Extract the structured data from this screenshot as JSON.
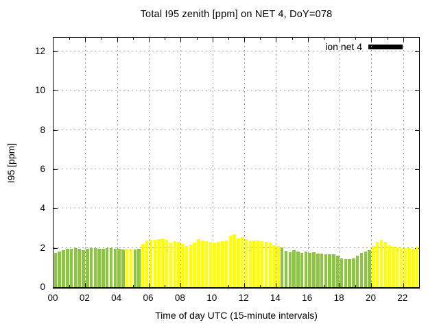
{
  "chart_data": {
    "type": "bar",
    "title": "Total I95 zenith [ppm] on NET 4, DoY=078",
    "xlabel": "Time of day UTC (15-minute intervals)",
    "ylabel": "I95 [ppm]",
    "xlim_hours": [
      0,
      23
    ],
    "ylim": [
      0,
      12.7
    ],
    "grid": true,
    "x_tick_labels": [
      "00",
      "02",
      "04",
      "06",
      "08",
      "10",
      "12",
      "14",
      "16",
      "18",
      "20",
      "22"
    ],
    "x_tick_hours": [
      0,
      2,
      4,
      6,
      8,
      10,
      12,
      14,
      16,
      18,
      20,
      22
    ],
    "y_ticks": [
      0,
      2,
      4,
      6,
      8,
      10,
      12
    ],
    "legend": [
      {
        "name": "ion net 4",
        "swatch_color": "#000000",
        "position": "top-right-inside"
      }
    ],
    "colors": {
      "green": "#8CC63E",
      "yellow": "#FFFF00"
    },
    "interval_minutes": 15,
    "x": [
      "00:00",
      "00:15",
      "00:30",
      "00:45",
      "01:00",
      "01:15",
      "01:30",
      "01:45",
      "02:00",
      "02:15",
      "02:30",
      "02:45",
      "03:00",
      "03:15",
      "03:30",
      "03:45",
      "04:00",
      "04:15",
      "04:30",
      "04:45",
      "05:00",
      "05:15",
      "05:30",
      "05:45",
      "06:00",
      "06:15",
      "06:30",
      "06:45",
      "07:00",
      "07:15",
      "07:30",
      "07:45",
      "08:00",
      "08:15",
      "08:30",
      "08:45",
      "09:00",
      "09:15",
      "09:30",
      "09:45",
      "10:00",
      "10:15",
      "10:30",
      "10:45",
      "11:00",
      "11:15",
      "11:30",
      "11:45",
      "12:00",
      "12:15",
      "12:30",
      "12:45",
      "13:00",
      "13:15",
      "13:30",
      "13:45",
      "14:00",
      "14:15",
      "14:30",
      "14:45",
      "15:00",
      "15:15",
      "15:30",
      "15:45",
      "16:00",
      "16:15",
      "16:30",
      "16:45",
      "17:00",
      "17:15",
      "17:30",
      "17:45",
      "18:00",
      "18:15",
      "18:30",
      "18:45",
      "19:00",
      "19:15",
      "19:30",
      "19:45",
      "20:00",
      "20:15",
      "20:30",
      "20:45",
      "21:00",
      "21:15",
      "21:30",
      "21:45",
      "22:00",
      "22:15",
      "22:30",
      "22:45"
    ],
    "values": [
      1.75,
      1.82,
      1.88,
      1.95,
      1.97,
      1.98,
      1.96,
      1.9,
      1.96,
      2.0,
      1.98,
      1.96,
      1.95,
      1.98,
      2.0,
      1.97,
      1.95,
      1.93,
      1.95,
      1.97,
      1.93,
      1.95,
      2.2,
      2.38,
      2.42,
      2.4,
      2.45,
      2.48,
      2.4,
      2.28,
      2.35,
      2.3,
      2.2,
      2.08,
      2.15,
      2.26,
      2.45,
      2.36,
      2.34,
      2.3,
      2.26,
      2.3,
      2.34,
      2.38,
      2.6,
      2.68,
      2.48,
      2.55,
      2.45,
      2.38,
      2.36,
      2.36,
      2.34,
      2.3,
      2.28,
      2.12,
      2.1,
      2.02,
      1.86,
      1.78,
      1.88,
      1.82,
      1.75,
      1.8,
      1.76,
      1.78,
      1.72,
      1.7,
      1.68,
      1.67,
      1.66,
      1.62,
      1.48,
      1.44,
      1.42,
      1.46,
      1.6,
      1.74,
      1.82,
      1.88,
      2.1,
      2.3,
      2.42,
      2.32,
      2.12,
      2.05,
      2.06,
      2.0,
      1.98,
      2.0,
      1.96,
      2.05
    ],
    "bar_colors": [
      "g",
      "g",
      "g",
      "g",
      "g",
      "g",
      "g",
      "g",
      "g",
      "g",
      "g",
      "g",
      "g",
      "g",
      "g",
      "g",
      "g",
      "g",
      "y",
      "y",
      "g",
      "g",
      "y",
      "y",
      "y",
      "y",
      "y",
      "y",
      "y",
      "y",
      "y",
      "y",
      "y",
      "y",
      "y",
      "y",
      "y",
      "y",
      "y",
      "y",
      "y",
      "y",
      "y",
      "y",
      "y",
      "y",
      "y",
      "y",
      "y",
      "y",
      "y",
      "y",
      "y",
      "y",
      "y",
      "y",
      "y",
      "g",
      "g",
      "g",
      "g",
      "g",
      "g",
      "g",
      "g",
      "g",
      "g",
      "g",
      "g",
      "g",
      "g",
      "g",
      "g",
      "g",
      "g",
      "g",
      "g",
      "g",
      "g",
      "g",
      "y",
      "y",
      "y",
      "y",
      "y",
      "y",
      "y",
      "y",
      "y",
      "y",
      "y",
      "y"
    ]
  }
}
